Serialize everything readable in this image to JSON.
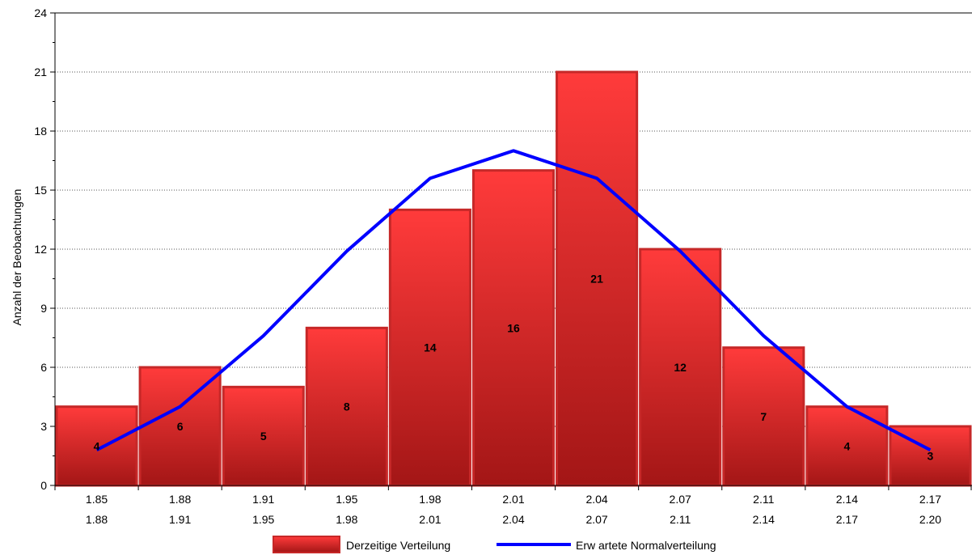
{
  "chart_data": {
    "type": "bar",
    "categories": [
      [
        "1.85",
        "1.88"
      ],
      [
        "1.88",
        "1.91"
      ],
      [
        "1.91",
        "1.95"
      ],
      [
        "1.95",
        "1.98"
      ],
      [
        "1.98",
        "2.01"
      ],
      [
        "2.01",
        "2.04"
      ],
      [
        "2.04",
        "2.07"
      ],
      [
        "2.07",
        "2.11"
      ],
      [
        "2.11",
        "2.14"
      ],
      [
        "2.14",
        "2.17"
      ],
      [
        "2.17",
        "2.20"
      ]
    ],
    "series": [
      {
        "name": "Derzeitige Verteilung",
        "type": "bar",
        "values": [
          4,
          6,
          5,
          8,
          14,
          16,
          21,
          12,
          7,
          4,
          3
        ],
        "labels": [
          "4",
          "6",
          "5",
          "8",
          "14",
          "16",
          "21",
          "12",
          "7",
          "4",
          "3"
        ]
      },
      {
        "name": "Erw artete Normalverteilung",
        "type": "line",
        "values": [
          1.8,
          4.0,
          7.6,
          11.9,
          15.6,
          17.0,
          15.6,
          11.9,
          7.6,
          4.0,
          1.8
        ]
      }
    ],
    "ylabel": "Anzahl der Beobachtungen",
    "xlabel": "",
    "ylim": [
      0,
      24
    ],
    "yticks": [
      "0",
      "3",
      "6",
      "9",
      "12",
      "15",
      "18",
      "21",
      "24"
    ],
    "grid": true,
    "legend_position": "bottom-center",
    "colors": {
      "bar_top": "#ff3b3b",
      "bar_bottom": "#a31616",
      "bar_border": "#c62828",
      "line": "#0000ff"
    }
  }
}
